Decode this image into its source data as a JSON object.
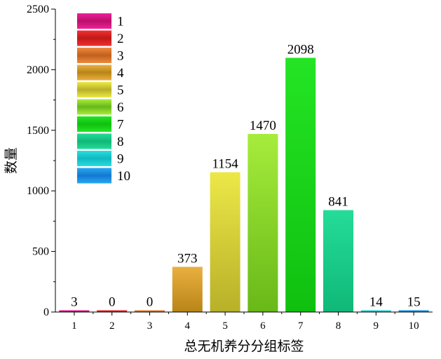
{
  "chart_data": {
    "type": "bar",
    "title": "",
    "xlabel": "总无机养分分组标签",
    "ylabel": "数量",
    "ylim": [
      0,
      2500
    ],
    "yticks": [
      "0",
      "500",
      "1000",
      "1500",
      "2000",
      "2500"
    ],
    "categories": [
      "1",
      "2",
      "3",
      "4",
      "5",
      "6",
      "7",
      "8",
      "9",
      "10"
    ],
    "values": [
      3,
      0,
      0,
      373,
      1154,
      1470,
      2098,
      841,
      14,
      15
    ],
    "value_labels": [
      "3",
      "0",
      "0",
      "373",
      "1154",
      "1470",
      "2098",
      "841",
      "14",
      "15"
    ],
    "legend": {
      "placement": "top-left",
      "entries": [
        "1",
        "2",
        "3",
        "4",
        "5",
        "6",
        "7",
        "8",
        "9",
        "10"
      ]
    },
    "colors": [
      [
        "#f02098",
        "#b8106a"
      ],
      [
        "#f03030",
        "#c01818"
      ],
      [
        "#ee8a40",
        "#c0601c"
      ],
      [
        "#eab040",
        "#b88418"
      ],
      [
        "#ece848",
        "#b8b028"
      ],
      [
        "#a6ec3c",
        "#68b818"
      ],
      [
        "#24e424",
        "#10c010"
      ],
      [
        "#24dc98",
        "#10b878"
      ],
      [
        "#28dede",
        "#10b8c0"
      ],
      [
        "#28a8f0",
        "#1478d0"
      ]
    ],
    "grid": false
  }
}
